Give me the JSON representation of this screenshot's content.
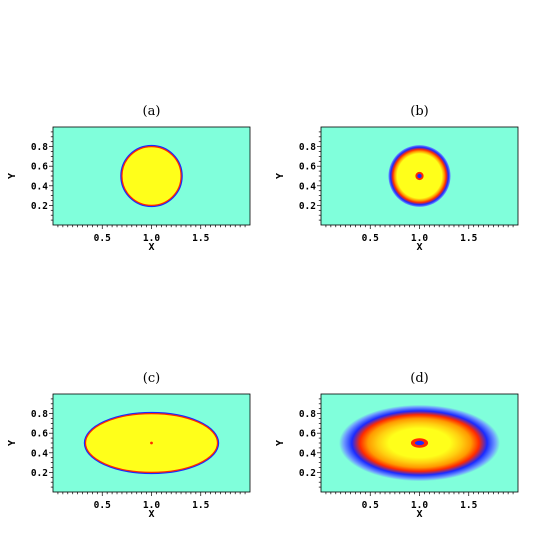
{
  "colors": {
    "background": "#80ffdb",
    "fill": "#ffff1a",
    "red": "#ff2a00",
    "orange": "#ff9a00",
    "blue": "#1a2aff",
    "light_blue": "#6f9cff",
    "axis": "#000000"
  },
  "chart_data": [
    {
      "type": "heatmap",
      "title": "(a)",
      "xlabel": "X",
      "ylabel": "Y",
      "xlim": [
        0,
        2
      ],
      "ylim": [
        0,
        1
      ],
      "xticks": [
        "0.5",
        "1.0",
        "1.5"
      ],
      "yticks": [
        "0.2",
        "0.4",
        "0.6",
        "0.8"
      ],
      "shape": {
        "kind": "circle",
        "center": [
          1.0,
          0.5
        ],
        "radii": [
          0.3,
          0.3
        ],
        "style": "solid"
      }
    },
    {
      "type": "heatmap",
      "title": "(b)",
      "xlabel": "X",
      "ylabel": "Y",
      "xlim": [
        0,
        2
      ],
      "ylim": [
        0,
        1
      ],
      "xticks": [
        "0.5",
        "1.0",
        "1.5"
      ],
      "yticks": [
        "0.2",
        "0.4",
        "0.6",
        "0.8"
      ],
      "shape": {
        "kind": "circle",
        "center": [
          1.0,
          0.5
        ],
        "radii": [
          0.3,
          0.3
        ],
        "style": "ring"
      }
    },
    {
      "type": "heatmap",
      "title": "(c)",
      "xlabel": "X",
      "ylabel": "Y",
      "xlim": [
        0,
        2
      ],
      "ylim": [
        0,
        1
      ],
      "xticks": [
        "0.5",
        "1.0",
        "1.5"
      ],
      "yticks": [
        "0.2",
        "0.4",
        "0.6",
        "0.8"
      ],
      "shape": {
        "kind": "ellipse",
        "center": [
          1.0,
          0.5
        ],
        "radii": [
          0.67,
          0.3
        ],
        "style": "solid"
      }
    },
    {
      "type": "heatmap",
      "title": "(d)",
      "xlabel": "X",
      "ylabel": "Y",
      "xlim": [
        0,
        2
      ],
      "ylim": [
        0,
        1
      ],
      "xticks": [
        "0.5",
        "1.0",
        "1.5"
      ],
      "yticks": [
        "0.2",
        "0.4",
        "0.6",
        "0.8"
      ],
      "shape": {
        "kind": "ellipse",
        "center": [
          1.0,
          0.5
        ],
        "radii": [
          0.67,
          0.3
        ],
        "style": "diffuse"
      }
    }
  ]
}
